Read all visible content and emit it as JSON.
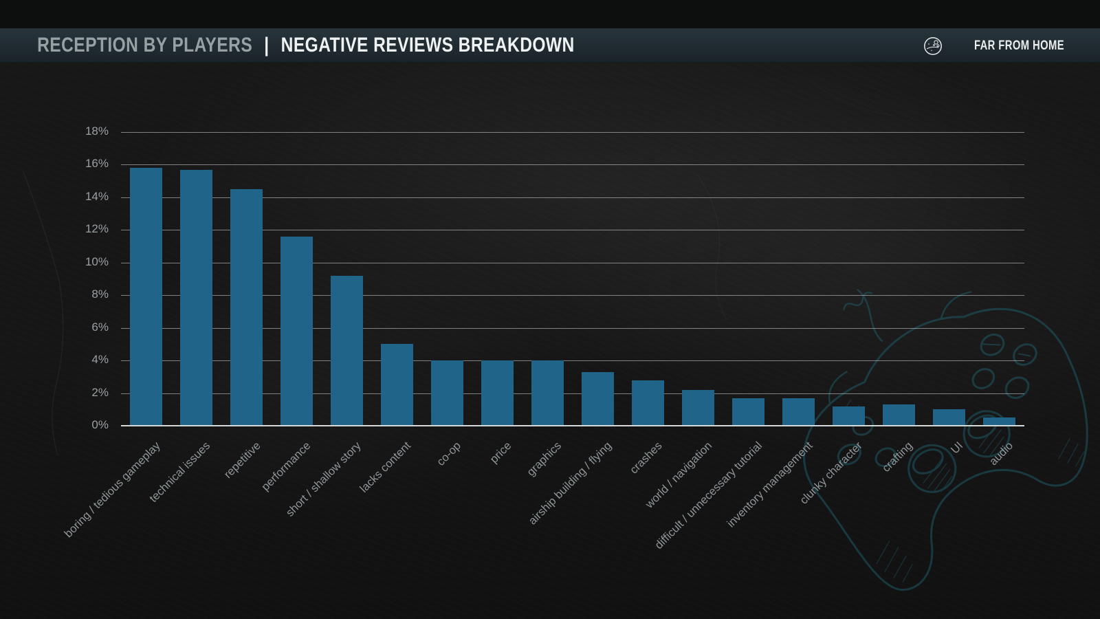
{
  "header": {
    "title_left": "RECEPTION BY PLAYERS",
    "separator": "|",
    "title_right": "NEGATIVE REVIEWS BREAKDOWN",
    "logo": {
      "icon": "moon-icon",
      "text": "FAR FROM HOME"
    }
  },
  "background": {
    "watermark": "hand-drawn game controller sketch",
    "texture": "dark concrete"
  },
  "chart_data": {
    "type": "bar",
    "title": "RECEPTION BY PLAYERS | NEGATIVE REVIEWS BREAKDOWN",
    "categories": [
      "boring / tedious gameplay",
      "technical issues",
      "repetitive",
      "performance",
      "short / shallow story",
      "lacks content",
      "co-op",
      "price",
      "graphics",
      "airship building / flying",
      "crashes",
      "world / navigation",
      "difficult / unnecessary tutorial",
      "inventory management",
      "clunky character",
      "crafting",
      "UI",
      "audio"
    ],
    "values": [
      15.8,
      15.7,
      14.5,
      11.6,
      9.2,
      5.0,
      4.0,
      4.0,
      4.0,
      3.3,
      2.8,
      2.2,
      1.7,
      1.7,
      1.2,
      1.3,
      1.0,
      0.5
    ],
    "xlabel": "",
    "ylabel": "",
    "ylim": [
      0,
      18
    ],
    "ytick_step": 2,
    "ytick_labels": [
      "0%",
      "2%",
      "4%",
      "6%",
      "8%",
      "10%",
      "12%",
      "14%",
      "16%",
      "18%"
    ],
    "grid": true,
    "legend": false,
    "colors": {
      "bar": "#20648a",
      "gridline": "#c9cecf",
      "axis": "#d6d9da",
      "tick_label": "#9aa0a3",
      "category_label": "#8f9699",
      "header_bg": "#222f36",
      "doodle_stroke": "#1f5f6c"
    }
  }
}
